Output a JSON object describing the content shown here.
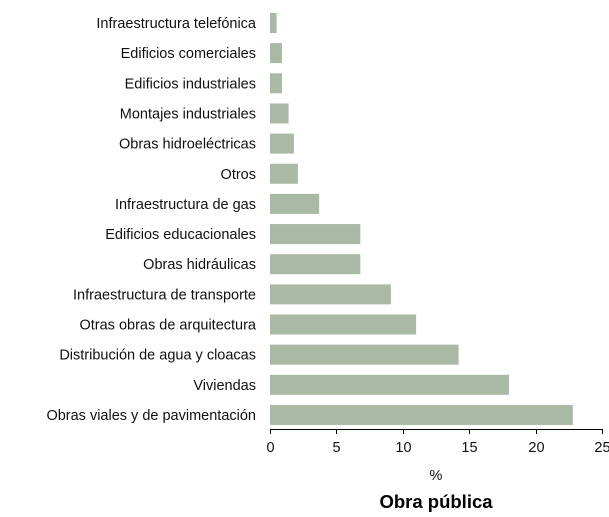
{
  "chart_data": {
    "type": "bar",
    "orientation": "horizontal",
    "title": "Obra pública",
    "xlabel": "%",
    "ylabel": "",
    "xlim": [
      0,
      25
    ],
    "x_ticks": [
      0,
      5,
      10,
      15,
      20,
      25
    ],
    "grid": false,
    "legend": "none",
    "bar_color": "#a9b9a4",
    "categories": [
      "Infraestructura telefónica",
      "Edificios comerciales",
      "Edificios industriales",
      "Montajes industriales",
      "Obras hidroeléctricas",
      "Otros",
      "Infraestructura de gas",
      "Edificios educacionales",
      "Obras hidráulicas",
      "Infraestructura de transporte",
      "Otras obras de arquitectura",
      "Distribución de agua y cloacas",
      "Viviendas",
      "Obras viales y de pavimentación"
    ],
    "values": [
      0.5,
      0.9,
      0.9,
      1.4,
      1.8,
      2.1,
      3.7,
      6.8,
      6.8,
      9.1,
      11.0,
      14.2,
      18.0,
      22.8
    ]
  }
}
